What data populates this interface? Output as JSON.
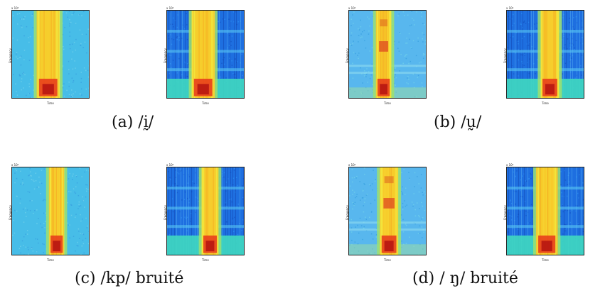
{
  "figure": {
    "panels": [
      {
        "id": "a",
        "caption": "(a) /ḭ/"
      },
      {
        "id": "b",
        "caption": "(b) /ṵ/"
      },
      {
        "id": "c",
        "caption": "(c)  /kp/ bruité"
      },
      {
        "id": "d",
        "caption": "(d) / ŋ/ bruité"
      }
    ],
    "axis": {
      "xlabel": "Time",
      "ylabel": "Frequency",
      "exponent": "x 10⁴"
    }
  }
}
